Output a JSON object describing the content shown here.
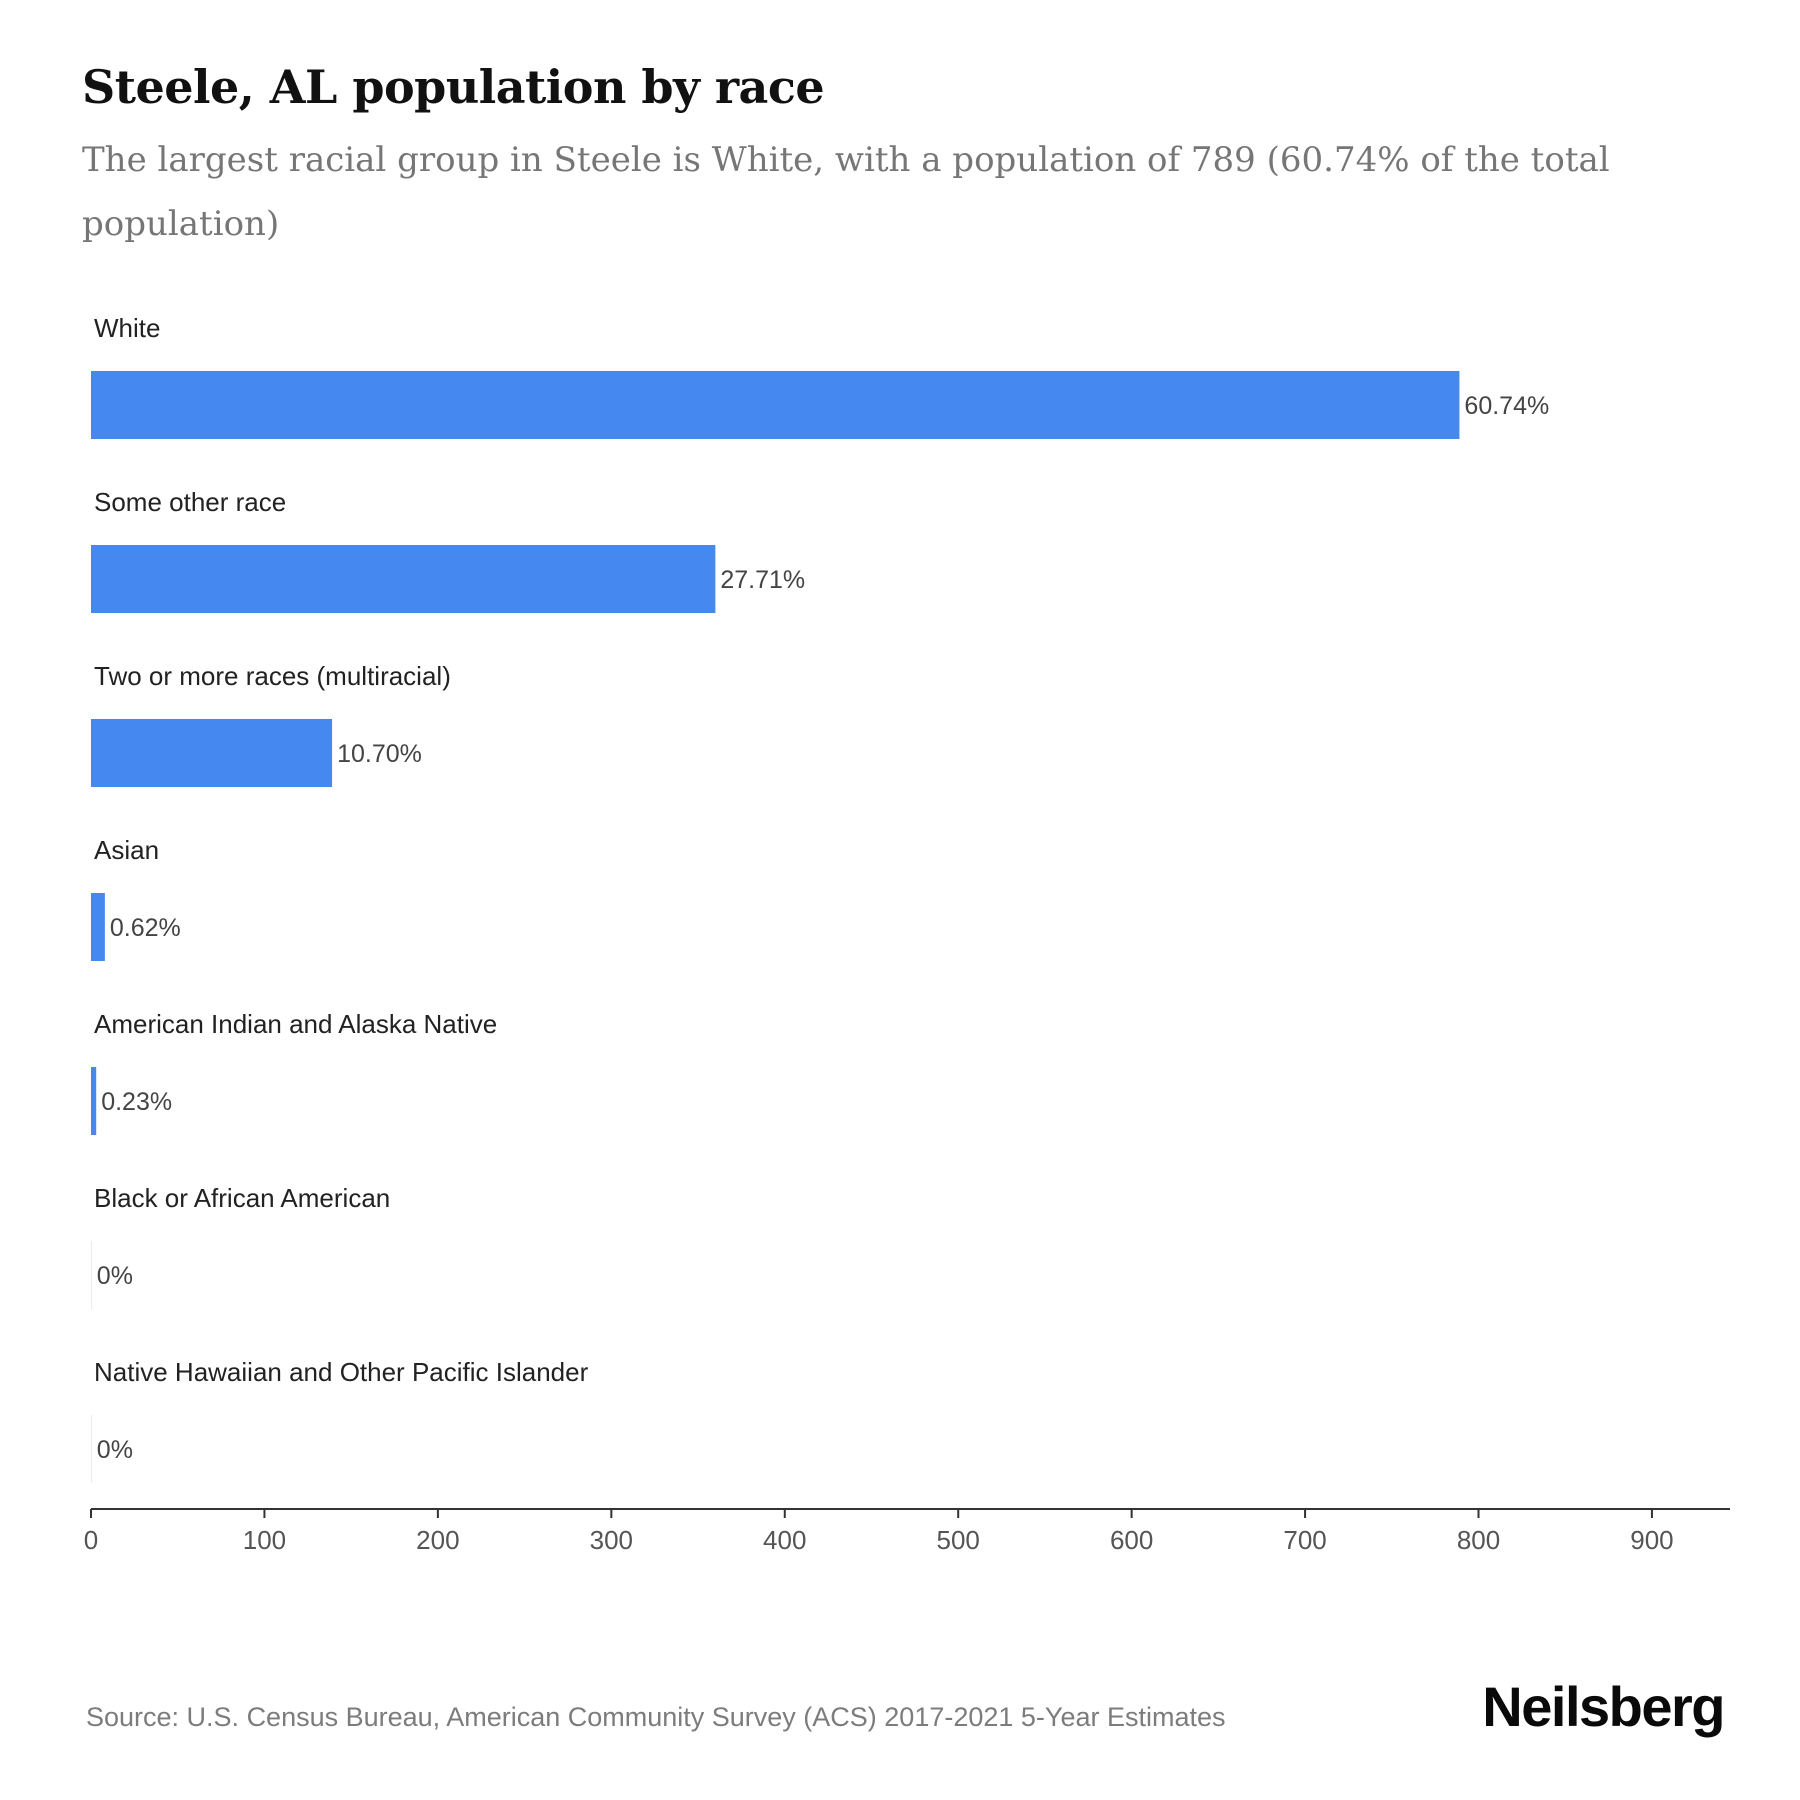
{
  "header": {
    "title": "Steele, AL population by race",
    "subtitle": "The largest racial group in Steele is White, with a population of 789 (60.74% of the total population)"
  },
  "colors": {
    "bar": "#4589f0",
    "axis": "#333333"
  },
  "chart_data": {
    "type": "bar",
    "orientation": "horizontal",
    "categories": [
      "White",
      "Some other race",
      "Two or more races (multiracial)",
      "Asian",
      "American Indian and Alaska Native",
      "Black or African American",
      "Native Hawaiian and Other Pacific Islander"
    ],
    "values": [
      789,
      360,
      139,
      8,
      3,
      0,
      0
    ],
    "value_labels": [
      "60.74%",
      "27.71%",
      "10.70%",
      "0.62%",
      "0.23%",
      "0%",
      "0%"
    ],
    "xlim": [
      0,
      945
    ],
    "xticks": [
      0,
      100,
      200,
      300,
      400,
      500,
      600,
      700,
      800,
      900
    ],
    "grid": false
  },
  "footer": {
    "source": "Source: U.S. Census Bureau, American Community Survey (ACS) 2017-2021 5-Year Estimates",
    "brand": "Neilsberg"
  }
}
